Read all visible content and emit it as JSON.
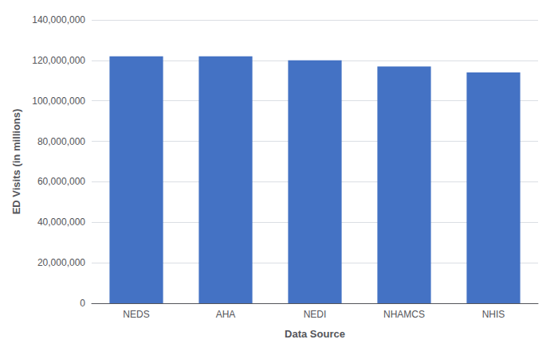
{
  "chart_data": {
    "type": "bar",
    "categories": [
      "NEDS",
      "AHA",
      "NEDI",
      "NHAMCS",
      "NHIS"
    ],
    "values": [
      122000000,
      122000000,
      120000000,
      117000000,
      114000000
    ],
    "color": "#4472C4",
    "xlabel": "Data Source",
    "ylabel": "ED Visits (in millions)",
    "ylim": [
      0,
      140000000
    ],
    "yticks": [
      0,
      {
        "value": 20000000,
        "label": "20,000,000"
      },
      {
        "value": 40000000,
        "label": "40,000,000"
      },
      {
        "value": 60000000,
        "label": "60,000,000"
      },
      {
        "value": 80000000,
        "label": "80,000,000"
      },
      {
        "value": 100000000,
        "label": "100,000,000"
      },
      {
        "value": 120000000,
        "label": "120,000,000"
      },
      {
        "value": 140000000,
        "label": "140,000,000"
      }
    ],
    "grid": true
  }
}
